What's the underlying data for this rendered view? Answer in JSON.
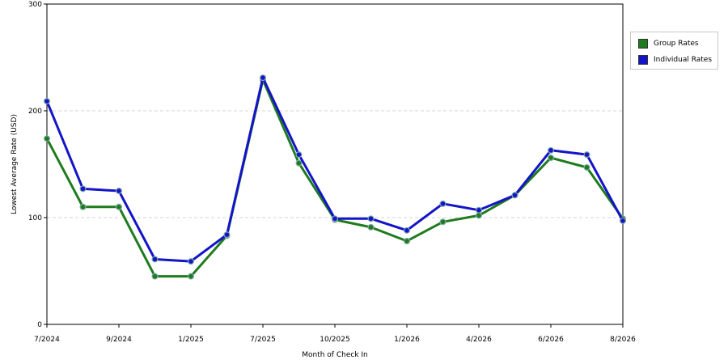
{
  "chart_data": {
    "type": "line",
    "title": "",
    "xlabel": "Month of Check In",
    "ylabel": "Lowest Average Rate (USD)",
    "ylim": [
      0,
      300
    ],
    "yticks": [
      "0",
      "100",
      "200",
      "300"
    ],
    "x_tick_labels": [
      "7/2024",
      "9/2024",
      "1/2025",
      "7/2025",
      "10/2025",
      "1/2026",
      "4/2026",
      "6/2026",
      "8/2026"
    ],
    "x_tick_positions": [
      0,
      2,
      4,
      6,
      8,
      10,
      12,
      14,
      16
    ],
    "x": [
      "7/2024",
      "8/2024",
      "9/2024",
      "10/2024",
      "1/2025",
      "4/2025",
      "7/2025",
      "8/2025",
      "10/2025",
      "11/2025",
      "1/2026",
      "2/2026",
      "4/2026",
      "5/2026",
      "6/2026",
      "7/2026",
      "8/2026"
    ],
    "grid": "horizontal dashed",
    "legend_position": "right",
    "series": [
      {
        "name": "Group Rates",
        "color": "#1e7b1e",
        "values": [
          174,
          110,
          110,
          45,
          45,
          83,
          229,
          151,
          98,
          91,
          78,
          96,
          102,
          121,
          156,
          147,
          99
        ]
      },
      {
        "name": "Individual Rates",
        "color": "#1414c8",
        "values": [
          209,
          127,
          125,
          61,
          59,
          84,
          231,
          159,
          99,
          99,
          88,
          113,
          107,
          121,
          163,
          159,
          97
        ]
      }
    ]
  }
}
